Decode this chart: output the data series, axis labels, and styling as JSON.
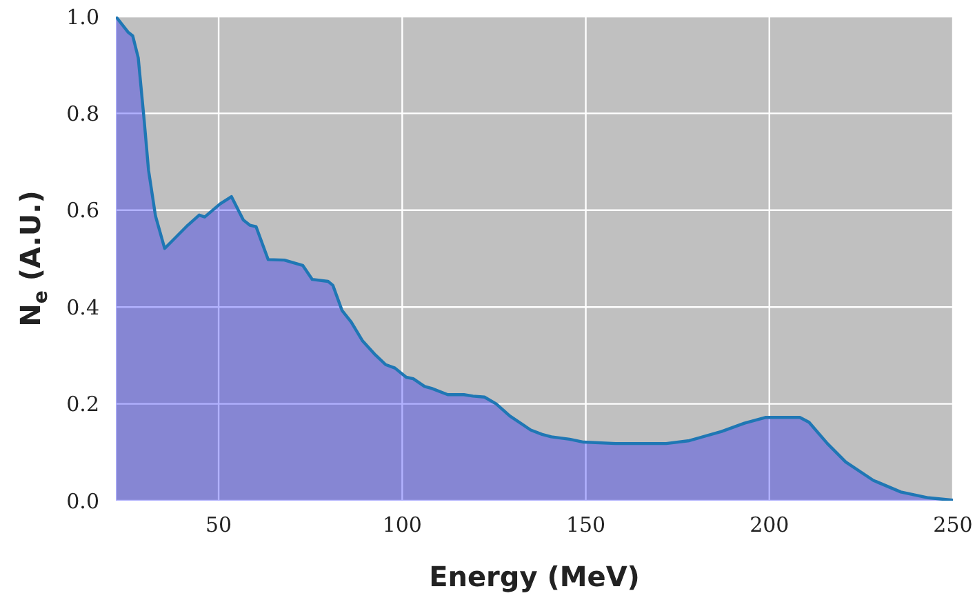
{
  "chart_data": {
    "type": "area",
    "xlabel": "Energy (MeV)",
    "ylabel": "N$_{e}$ (A.U.)",
    "xlim": [
      22,
      250
    ],
    "ylim": [
      0,
      1
    ],
    "xticks": [
      50,
      100,
      150,
      200,
      250
    ],
    "yticks": [
      {
        "value": 0,
        "label": "0.0"
      },
      0.2,
      0.4,
      0.6,
      0.8,
      {
        "value": 1,
        "label": "1.0"
      }
    ],
    "grid": true,
    "x": [
      22,
      25.3,
      26.6,
      28.1,
      29.7,
      30.9,
      32.8,
      35.3,
      41.6,
      44.7,
      46.2,
      50.4,
      53.5,
      56.7,
      58.5,
      60.2,
      63.5,
      67.9,
      72.9,
      75.5,
      79.8,
      81.1,
      83.6,
      86.1,
      89.2,
      92.7,
      95.5,
      98,
      101.1,
      103,
      106.1,
      108,
      112.4,
      116.8,
      119.3,
      122.4,
      125.6,
      129.3,
      135,
      138.1,
      140.6,
      145.6,
      149.4,
      158.1,
      171.9,
      178.2,
      187,
      193.2,
      198.9,
      208.3,
      210.8,
      215.8,
      220.8,
      228.3,
      235.8,
      243.3,
      250
    ],
    "series": [
      {
        "color": "#1f77b4",
        "values": [
          1.0,
          0.968,
          0.96,
          0.915,
          0.787,
          0.683,
          0.588,
          0.521,
          0.569,
          0.59,
          0.586,
          0.613,
          0.628,
          0.58,
          0.569,
          0.566,
          0.498,
          0.497,
          0.486,
          0.457,
          0.453,
          0.445,
          0.393,
          0.369,
          0.33,
          0.301,
          0.281,
          0.274,
          0.255,
          0.252,
          0.236,
          0.232,
          0.219,
          0.219,
          0.216,
          0.214,
          0.2,
          0.175,
          0.146,
          0.137,
          0.132,
          0.127,
          0.121,
          0.118,
          0.118,
          0.124,
          0.143,
          0.16,
          0.172,
          0.172,
          0.162,
          0.118,
          0.08,
          0.042,
          0.018,
          0.006,
          0.001
        ]
      }
    ]
  }
}
